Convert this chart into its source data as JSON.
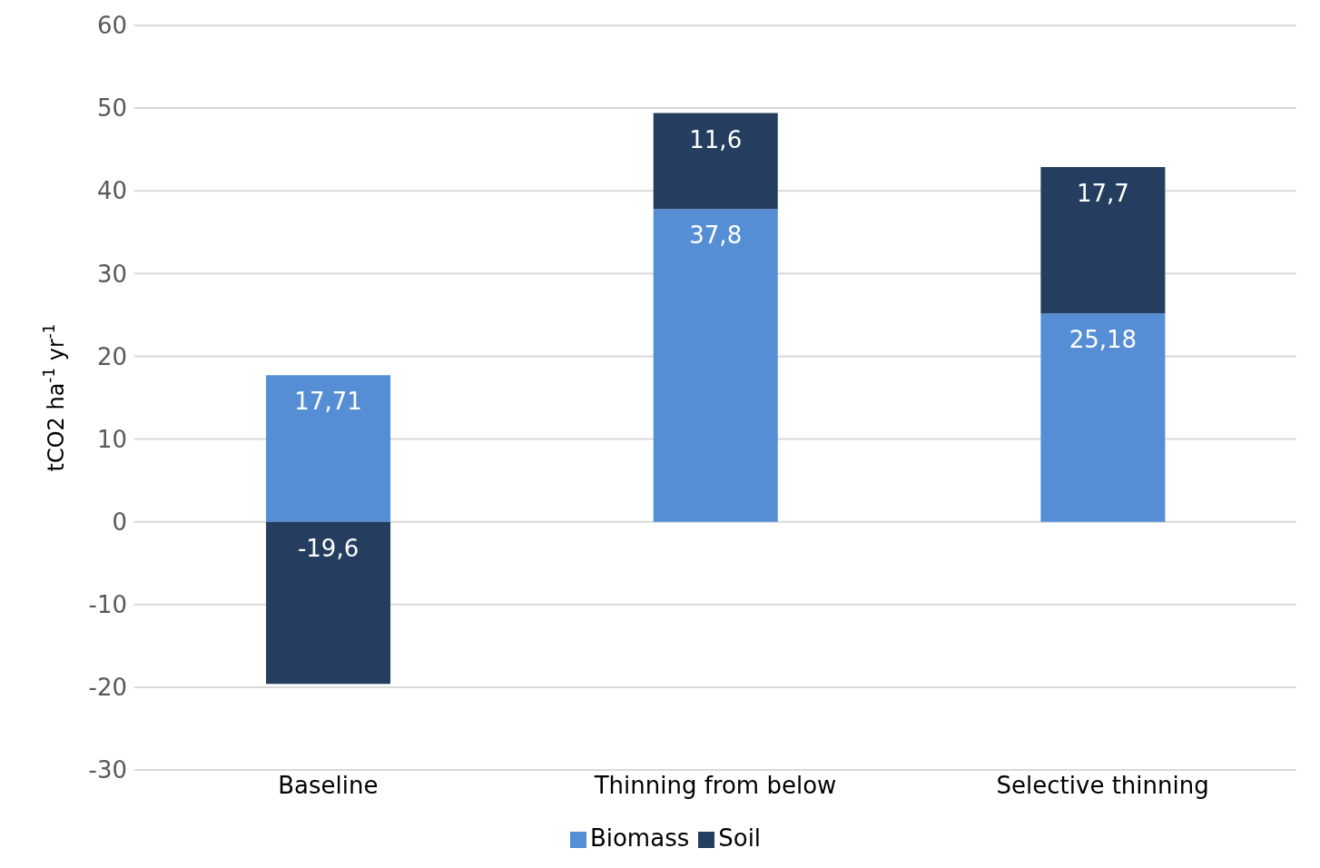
{
  "chart_data": {
    "type": "bar",
    "stacked": true,
    "ylabel": "tCO2 ha$^{-1}$ yr$^{-1}$",
    "categories": [
      "Baseline",
      "Thinning from below",
      "Selective thinning"
    ],
    "series": [
      {
        "name": "Biomass",
        "color": "#558ed5",
        "values": [
          17.71,
          37.8,
          25.18
        ],
        "value_labels": [
          "17,71",
          "37,8",
          "25,18"
        ]
      },
      {
        "name": "Soil",
        "color": "#253d5e",
        "values": [
          -19.6,
          11.6,
          17.7
        ],
        "value_labels": [
          "-19,6",
          "11,6",
          "17,7"
        ]
      }
    ],
    "ylim": [
      -30,
      60
    ],
    "yticks": [
      -30,
      -20,
      -10,
      0,
      10,
      20,
      30,
      40,
      50,
      60
    ],
    "grid": "y",
    "legend": "bottom"
  }
}
